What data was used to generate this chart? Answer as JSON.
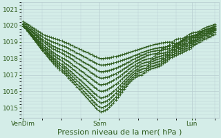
{
  "bg_color": "#d4ede8",
  "grid_color": "#b8cdd0",
  "line_color": "#2d5a1b",
  "marker": "+",
  "markersize": 3,
  "linewidth": 0.7,
  "xlabel": "Pression niveau de la mer( hPa )",
  "xlabel_fontsize": 8,
  "tick_fontsize": 6.5,
  "ylim": [
    1014.4,
    1021.4
  ],
  "yticks": [
    1015,
    1016,
    1017,
    1018,
    1019,
    1020,
    1021
  ],
  "xtick_labels": [
    "VenDim",
    "Sam",
    "Lun"
  ],
  "xtick_positions": [
    0.0,
    0.4,
    0.88
  ],
  "series_params": [
    [
      1020.0,
      0.4,
      1014.75,
      0.62,
      1017.0,
      1019.5,
      0.18,
      1017.1
    ],
    [
      1020.0,
      0.4,
      1015.0,
      0.63,
      1017.2,
      1019.6,
      0.18,
      1017.3
    ],
    [
      1020.0,
      0.4,
      1015.3,
      0.64,
      1017.4,
      1019.7,
      0.18,
      1017.5
    ],
    [
      1020.0,
      0.4,
      1015.6,
      0.65,
      1017.6,
      1019.75,
      0.18,
      1017.7
    ],
    [
      1020.0,
      0.4,
      1016.0,
      0.66,
      1017.8,
      1019.8,
      0.18,
      1017.9
    ],
    [
      1020.0,
      0.4,
      1016.4,
      0.67,
      1018.0,
      1019.85,
      0.18,
      1018.1
    ],
    [
      1020.1,
      0.4,
      1016.8,
      0.7,
      1018.3,
      1019.9,
      0.17,
      1018.4
    ],
    [
      1020.1,
      0.4,
      1017.2,
      0.72,
      1018.5,
      1019.95,
      0.17,
      1018.6
    ],
    [
      1020.2,
      0.4,
      1017.6,
      0.75,
      1018.7,
      1020.0,
      0.16,
      1018.8
    ],
    [
      1020.3,
      0.4,
      1018.0,
      0.78,
      1019.0,
      1020.1,
      0.15,
      1019.1
    ]
  ]
}
